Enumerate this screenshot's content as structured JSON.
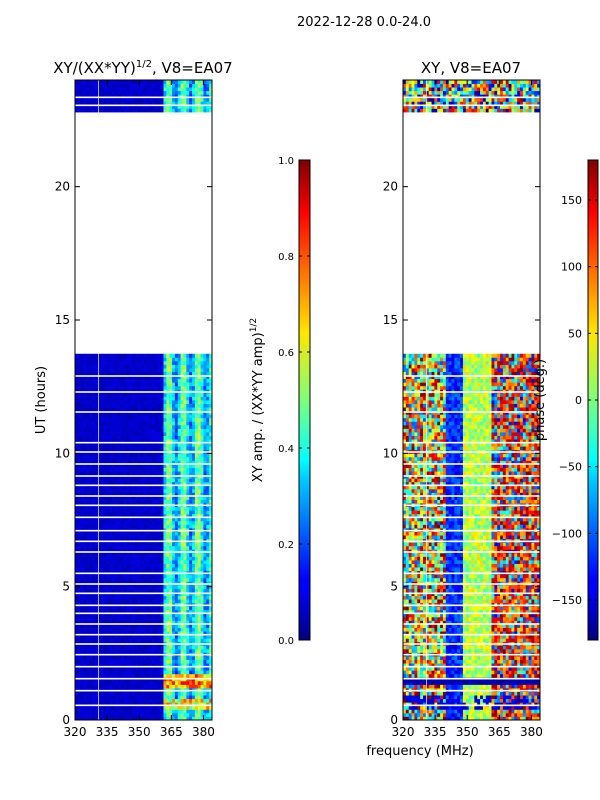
{
  "suptitle": "2022-12-28 0.0-24.0",
  "chart_data": [
    {
      "type": "heatmap",
      "title_base": "XY/(XX*YY)",
      "title_exp": "1/2",
      "title_suffix": ", V8=EA07",
      "ylabel": "UT (hours)",
      "xlabel": "",
      "xlim": [
        320,
        384
      ],
      "ylim": [
        0,
        24
      ],
      "xticks": [
        320,
        335,
        350,
        365,
        380
      ],
      "yticks": [
        0,
        5,
        10,
        15,
        20
      ],
      "data_gap_hours": [
        13.7,
        22.8
      ],
      "colorbar": {
        "label_base": "XY amp. / (XX*YY amp)",
        "label_exp": "1/2",
        "range": [
          0.0,
          1.0
        ],
        "ticks": [
          "0.0",
          "0.2",
          "0.4",
          "0.6",
          "0.8",
          "1.0"
        ],
        "tick_values": [
          0,
          0.2,
          0.4,
          0.6,
          0.8,
          1.0
        ],
        "colormap": "jet"
      },
      "note": "amplitude near 0 (dark blue) below ~362 MHz, elevated 0.2-0.6 in 362-383 MHz"
    },
    {
      "type": "heatmap",
      "title": "XY, V8=EA07",
      "xlabel": "frequency (MHz)",
      "xlim": [
        320,
        384
      ],
      "ylim": [
        0,
        24
      ],
      "xticks": [
        320,
        335,
        350,
        365,
        380
      ],
      "yticks": [
        0,
        5,
        10,
        15,
        20
      ],
      "data_gap_hours": [
        13.7,
        22.8
      ],
      "colorbar": {
        "label": "phase (deg.)",
        "range": [
          -180,
          180
        ],
        "ticks": [
          "150",
          "100",
          "50",
          "0",
          "−50",
          "−100",
          "−150"
        ],
        "tick_values": [
          150,
          100,
          50,
          0,
          -50,
          -100,
          -150
        ],
        "colormap": "jet"
      },
      "note": "noisy phase across band; blue near -150 deg around 340-350 MHz, red/orange near 365-383 MHz"
    }
  ]
}
